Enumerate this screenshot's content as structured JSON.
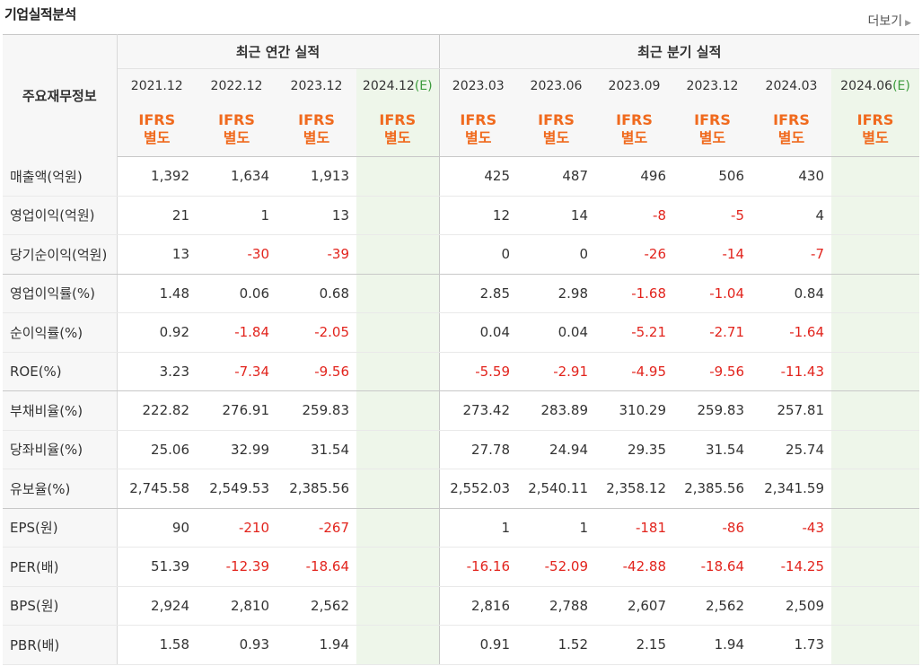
{
  "header": {
    "title": "기업실적분석",
    "more_label": "더보기"
  },
  "table": {
    "corner_label": "주요재무정보",
    "group_annual": "최근 연간 실적",
    "group_quarter": "최근 분기 실적",
    "periods": [
      "2021.12",
      "2022.12",
      "2023.12",
      "2024.12(E)",
      "2023.03",
      "2023.06",
      "2023.09",
      "2023.12",
      "2024.03",
      "2024.06(E)"
    ],
    "ifrs_top": "IFRS",
    "ifrs_bottom": "별도",
    "rows": [
      {
        "label": "매출액(억원)",
        "values": [
          "1,392",
          "1,634",
          "1,913",
          "",
          "425",
          "487",
          "496",
          "506",
          "430",
          ""
        ]
      },
      {
        "label": "영업이익(억원)",
        "values": [
          "21",
          "1",
          "13",
          "",
          "12",
          "14",
          "-8",
          "-5",
          "4",
          ""
        ]
      },
      {
        "label": "당기순이익(억원)",
        "values": [
          "13",
          "-30",
          "-39",
          "",
          "0",
          "0",
          "-26",
          "-14",
          "-7",
          ""
        ]
      },
      {
        "label": "영업이익률(%)",
        "values": [
          "1.48",
          "0.06",
          "0.68",
          "",
          "2.85",
          "2.98",
          "-1.68",
          "-1.04",
          "0.84",
          ""
        ]
      },
      {
        "label": "순이익률(%)",
        "values": [
          "0.92",
          "-1.84",
          "-2.05",
          "",
          "0.04",
          "0.04",
          "-5.21",
          "-2.71",
          "-1.64",
          ""
        ]
      },
      {
        "label": "ROE(%)",
        "values": [
          "3.23",
          "-7.34",
          "-9.56",
          "",
          "-5.59",
          "-2.91",
          "-4.95",
          "-9.56",
          "-11.43",
          ""
        ]
      },
      {
        "label": "부채비율(%)",
        "values": [
          "222.82",
          "276.91",
          "259.83",
          "",
          "273.42",
          "283.89",
          "310.29",
          "259.83",
          "257.81",
          ""
        ]
      },
      {
        "label": "당좌비율(%)",
        "values": [
          "25.06",
          "32.99",
          "31.54",
          "",
          "27.78",
          "24.94",
          "29.35",
          "31.54",
          "25.74",
          ""
        ]
      },
      {
        "label": "유보율(%)",
        "values": [
          "2,745.58",
          "2,549.53",
          "2,385.56",
          "",
          "2,552.03",
          "2,540.11",
          "2,358.12",
          "2,385.56",
          "2,341.59",
          ""
        ]
      },
      {
        "label": "EPS(원)",
        "values": [
          "90",
          "-210",
          "-267",
          "",
          "1",
          "1",
          "-181",
          "-86",
          "-43",
          ""
        ]
      },
      {
        "label": "PER(배)",
        "values": [
          "51.39",
          "-12.39",
          "-18.64",
          "",
          "-16.16",
          "-52.09",
          "-42.88",
          "-18.64",
          "-14.25",
          ""
        ]
      },
      {
        "label": "BPS(원)",
        "values": [
          "2,924",
          "2,810",
          "2,562",
          "",
          "2,816",
          "2,788",
          "2,607",
          "2,562",
          "2,509",
          ""
        ]
      },
      {
        "label": "PBR(배)",
        "values": [
          "1.58",
          "0.93",
          "1.94",
          "",
          "0.91",
          "1.52",
          "2.15",
          "1.94",
          "1.73",
          ""
        ]
      }
    ]
  },
  "colors": {
    "negative": "#e2241d",
    "ifrs": "#f06a1e",
    "estimate_bg": "#eef6ea",
    "estimate_text": "#3d9b3d"
  }
}
